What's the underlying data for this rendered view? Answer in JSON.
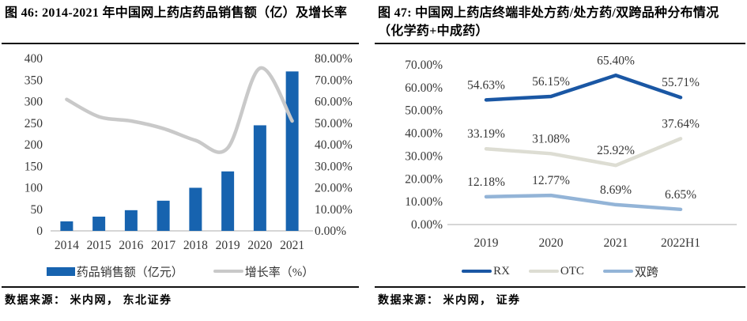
{
  "figure46": {
    "title": "图 46: 2014-2021 年中国网上药店药品销售额（亿）及增长率",
    "source": "数据来源： 米内网， 东北证券"
  },
  "figure47": {
    "title": "图 47: 中国网上药店终端非处方药/处方药/双跨品种分布情况（化学药+中成药）",
    "source": "数据来源： 米内网， 证券"
  },
  "colors": {
    "bar_blue": "#1763AF",
    "growth_gray": "#C9C9C9",
    "rx_blue": "#1A57A4",
    "otc_gray": "#DDDDD3",
    "shuangkua_blue": "#93B4D7",
    "axis_line": "#C9C9C9",
    "axis_text": "#363636"
  },
  "chart_data": [
    {
      "type": "bar",
      "subtype": "combo-bar-line",
      "title": "2014-2021 年中国网上药店药品销售额（亿）及增长率",
      "categories": [
        "2014",
        "2015",
        "2016",
        "2017",
        "2018",
        "2019",
        "2020",
        "2021"
      ],
      "series": [
        {
          "name": "药品销售额（亿元）",
          "render": "bar",
          "axis": "left",
          "values": [
            22,
            33,
            48,
            70,
            100,
            138,
            245,
            370
          ],
          "color": "#1763AF"
        },
        {
          "name": "增长率（%）",
          "render": "line",
          "axis": "right",
          "smooth": true,
          "values": [
            61,
            53,
            51,
            47.5,
            42,
            38.5,
            75.5,
            51
          ],
          "color": "#C9C9C9"
        }
      ],
      "left_axis": {
        "min": 0,
        "max": 400,
        "tick_labels": [
          "0",
          "50",
          "100",
          "150",
          "200",
          "250",
          "300",
          "350",
          "400"
        ]
      },
      "right_axis": {
        "min": 0,
        "max": 80,
        "tick_labels": [
          "0.00%",
          "10.00%",
          "20.00%",
          "30.00%",
          "40.00%",
          "50.00%",
          "60.00%",
          "70.00%",
          "80.00%"
        ]
      },
      "legend_position": "bottom",
      "grid": false
    },
    {
      "type": "line",
      "title": "中国网上药店终端非处方药/处方药/双跨品种分布情况（化学药+中成药）",
      "categories": [
        "2019",
        "2020",
        "2021",
        "2022H1"
      ],
      "series": [
        {
          "name": "RX",
          "values": [
            54.63,
            56.15,
            65.4,
            55.71
          ],
          "point_labels": [
            "54.63%",
            "56.15%",
            "65.40%",
            "55.71%"
          ],
          "color": "#1A57A4"
        },
        {
          "name": "OTC",
          "values": [
            33.19,
            31.08,
            25.92,
            37.64
          ],
          "point_labels": [
            "33.19%",
            "31.08%",
            "25.92%",
            "37.64%"
          ],
          "color": "#DDDDD3"
        },
        {
          "name": "双跨",
          "values": [
            12.18,
            12.77,
            8.69,
            6.65
          ],
          "point_labels": [
            "12.18%",
            "12.77%",
            "8.69%",
            "6.65%"
          ],
          "color": "#93B4D7"
        }
      ],
      "y_axis": {
        "min": 0,
        "max": 70,
        "tick_labels": [
          "0.00%",
          "10.00%",
          "20.00%",
          "30.00%",
          "40.00%",
          "50.00%",
          "60.00%",
          "70.00%"
        ]
      },
      "legend_position": "bottom",
      "grid": false
    }
  ]
}
